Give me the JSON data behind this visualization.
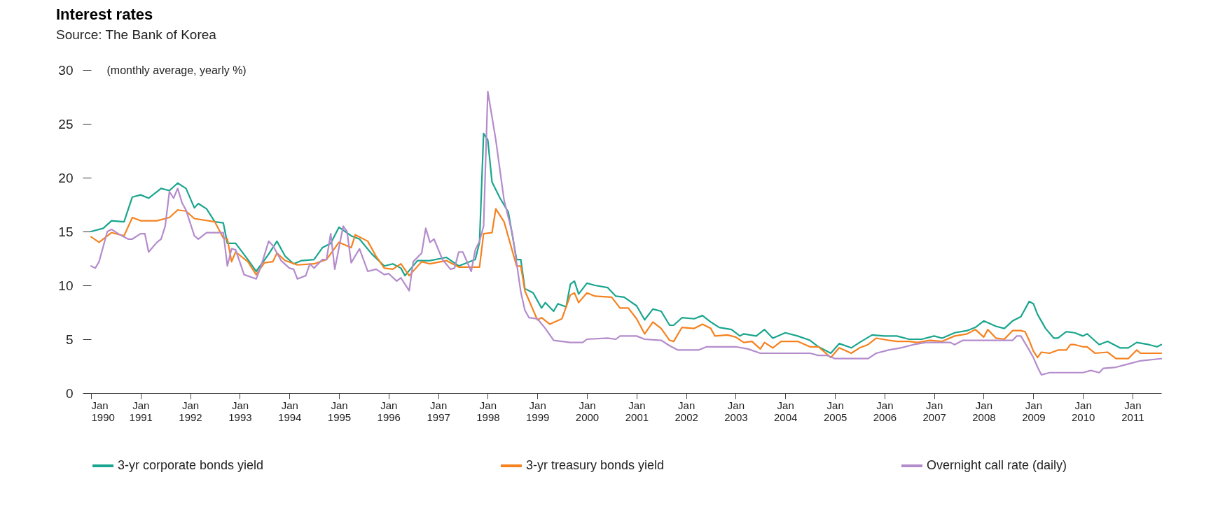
{
  "chart_data": {
    "type": "line",
    "title": "Interest rates",
    "subtitle": "Source: The Bank of Korea",
    "ylabel": "(monthly average, yearly %)",
    "xlim": [
      "1990-01",
      "2011-08"
    ],
    "xticks": [
      {
        "value": "1990-01",
        "label": "Jan\n1990"
      },
      {
        "value": "1991-01",
        "label": "Jan\n1991"
      },
      {
        "value": "1992-01",
        "label": "Jan\n1992"
      },
      {
        "value": "1993-01",
        "label": "Jan\n1993"
      },
      {
        "value": "1994-01",
        "label": "Jan\n1994"
      },
      {
        "value": "1995-01",
        "label": "Jan\n1995"
      },
      {
        "value": "1996-01",
        "label": "Jan\n1996"
      },
      {
        "value": "1997-01",
        "label": "Jan\n1997"
      },
      {
        "value": "1998-01",
        "label": "Jan\n1998"
      },
      {
        "value": "1999-01",
        "label": "Jan\n1999"
      },
      {
        "value": "2000-01",
        "label": "Jan\n2000"
      },
      {
        "value": "2001-01",
        "label": "Jan\n2001"
      },
      {
        "value": "2002-01",
        "label": "Jan\n2002"
      },
      {
        "value": "2003-01",
        "label": "Jan\n2003"
      },
      {
        "value": "2004-01",
        "label": "Jan\n2004"
      },
      {
        "value": "2005-01",
        "label": "Jan\n2005"
      },
      {
        "value": "2006-01",
        "label": "Jan\n2006"
      },
      {
        "value": "2007-01",
        "label": "Jan\n2007"
      },
      {
        "value": "2008-01",
        "label": "Jan\n2008"
      },
      {
        "value": "2009-01",
        "label": "Jan\n2009"
      },
      {
        "value": "2010-01",
        "label": "Jan\n2010"
      },
      {
        "value": "2011-01",
        "label": "Jan\n2011"
      }
    ],
    "ylim": [
      0,
      30
    ],
    "yticks": [
      0,
      5,
      10,
      15,
      20,
      25,
      30
    ],
    "grid": false,
    "legend": "bottom",
    "line_style": "solid",
    "series": [
      {
        "name": "3-yr corporate bonds yield",
        "color": "#1aa58e",
        "x": [
          "1990-01",
          "1990-04",
          "1990-06",
          "1990-09",
          "1990-11",
          "1991-01",
          "1991-03",
          "1991-05",
          "1991-06",
          "1991-08",
          "1991-10",
          "1991-12",
          "1992-02",
          "1992-03",
          "1992-05",
          "1992-07",
          "1992-09",
          "1992-10",
          "1992-12",
          "1993-03",
          "1993-05",
          "1993-08",
          "1993-10",
          "1993-12",
          "1994-02",
          "1994-04",
          "1994-07",
          "1994-09",
          "1994-11",
          "1995-01",
          "1995-04",
          "1995-06",
          "1995-09",
          "1995-12",
          "1996-02",
          "1996-04",
          "1996-05",
          "1996-08",
          "1996-11",
          "1997-03",
          "1997-06",
          "1997-10",
          "1997-11",
          "1997-12",
          "1998-01",
          "1998-02",
          "1998-04",
          "1998-06",
          "1998-08",
          "1998-09",
          "1998-10",
          "1998-12",
          "1999-02",
          "1999-03",
          "1999-05",
          "1999-06",
          "1999-08",
          "1999-09",
          "1999-10",
          "1999-11",
          "2000-01",
          "2000-03",
          "2000-06",
          "2000-08",
          "2000-10",
          "2001-01",
          "2001-03",
          "2001-05",
          "2001-07",
          "2001-09",
          "2001-10",
          "2001-12",
          "2002-03",
          "2002-05",
          "2002-07",
          "2002-09",
          "2002-12",
          "2003-02",
          "2003-03",
          "2003-06",
          "2003-08",
          "2003-10",
          "2004-01",
          "2004-04",
          "2004-07",
          "2004-09",
          "2004-12",
          "2005-02",
          "2005-05",
          "2005-07",
          "2005-10",
          "2006-01",
          "2006-04",
          "2006-07",
          "2006-10",
          "2007-01",
          "2007-03",
          "2007-06",
          "2007-09",
          "2007-11",
          "2008-01",
          "2008-04",
          "2008-06",
          "2008-08",
          "2008-10",
          "2008-12",
          "2009-01",
          "2009-02",
          "2009-04",
          "2009-06",
          "2009-07",
          "2009-09",
          "2009-11",
          "2010-01",
          "2010-02",
          "2010-05",
          "2010-07",
          "2010-10",
          "2010-12",
          "2011-02",
          "2011-05",
          "2011-07",
          "2011-08"
        ],
        "values": [
          15.0,
          15.3,
          16.0,
          15.9,
          18.2,
          18.4,
          18.1,
          18.7,
          19.0,
          18.8,
          19.5,
          19.0,
          17.2,
          17.6,
          17.1,
          15.9,
          15.8,
          13.9,
          13.9,
          12.4,
          11.3,
          12.9,
          14.1,
          12.7,
          12.0,
          12.3,
          12.4,
          13.5,
          13.9,
          15.4,
          14.6,
          14.3,
          12.9,
          11.8,
          12.0,
          11.6,
          10.9,
          12.3,
          12.3,
          12.6,
          11.8,
          12.4,
          14.0,
          24.1,
          23.5,
          19.6,
          18.1,
          16.8,
          12.4,
          12.4,
          9.7,
          9.3,
          7.9,
          8.4,
          7.6,
          8.3,
          8.0,
          10.1,
          10.4,
          9.2,
          10.2,
          10.0,
          9.8,
          9.0,
          8.9,
          8.1,
          6.8,
          7.8,
          7.6,
          6.3,
          6.3,
          7.0,
          6.9,
          7.2,
          6.6,
          6.1,
          5.9,
          5.3,
          5.5,
          5.3,
          5.9,
          5.1,
          5.6,
          5.3,
          4.9,
          4.3,
          3.7,
          4.6,
          4.2,
          4.7,
          5.4,
          5.3,
          5.3,
          5.0,
          5.0,
          5.3,
          5.1,
          5.6,
          5.8,
          6.1,
          6.7,
          6.2,
          6.0,
          6.7,
          7.1,
          8.5,
          8.3,
          7.3,
          6.0,
          5.1,
          5.1,
          5.7,
          5.6,
          5.3,
          5.5,
          4.5,
          4.8,
          4.2,
          4.2,
          4.7,
          4.5,
          4.3,
          4.5
        ]
      },
      {
        "name": "3-yr treasury bonds yield",
        "color": "#f5821f",
        "x": [
          "1990-01",
          "1990-03",
          "1990-06",
          "1990-09",
          "1990-11",
          "1991-01",
          "1991-05",
          "1991-08",
          "1991-10",
          "1991-12",
          "1992-02",
          "1992-07",
          "1992-09",
          "1992-10",
          "1992-11",
          "1992-12",
          "1993-03",
          "1993-05",
          "1993-07",
          "1993-09",
          "1993-10",
          "1993-12",
          "1994-03",
          "1994-07",
          "1994-10",
          "1995-01",
          "1995-04",
          "1995-05",
          "1995-08",
          "1995-10",
          "1995-12",
          "1996-02",
          "1996-04",
          "1996-06",
          "1996-09",
          "1996-11",
          "1997-03",
          "1997-06",
          "1997-11",
          "1997-12",
          "1998-02",
          "1998-03",
          "1998-05",
          "1998-08",
          "1998-09",
          "1998-10",
          "1999-01",
          "1999-02",
          "1999-04",
          "1999-07",
          "1999-09",
          "1999-10",
          "1999-11",
          "2000-01",
          "2000-03",
          "2000-07",
          "2000-09",
          "2000-11",
          "2001-01",
          "2001-03",
          "2001-05",
          "2001-07",
          "2001-09",
          "2001-10",
          "2001-12",
          "2002-03",
          "2002-05",
          "2002-07",
          "2002-08",
          "2002-11",
          "2003-01",
          "2003-03",
          "2003-05",
          "2003-07",
          "2003-08",
          "2003-10",
          "2003-12",
          "2004-04",
          "2004-07",
          "2004-09",
          "2004-12",
          "2005-02",
          "2005-05",
          "2005-07",
          "2005-09",
          "2005-11",
          "2006-02",
          "2006-04",
          "2006-07",
          "2006-09",
          "2006-12",
          "2007-03",
          "2007-06",
          "2007-09",
          "2007-11",
          "2008-01",
          "2008-02",
          "2008-04",
          "2008-06",
          "2008-08",
          "2008-10",
          "2008-11",
          "2008-12",
          "2009-01",
          "2009-02",
          "2009-03",
          "2009-05",
          "2009-07",
          "2009-09",
          "2009-10",
          "2009-11",
          "2010-01",
          "2010-02",
          "2010-04",
          "2010-07",
          "2010-09",
          "2010-12",
          "2011-02",
          "2011-03",
          "2011-08"
        ],
        "values": [
          14.5,
          14.0,
          14.9,
          14.6,
          16.3,
          16.0,
          16.0,
          16.3,
          17.0,
          16.9,
          16.2,
          15.9,
          14.4,
          14.3,
          12.2,
          13.1,
          12.2,
          11.0,
          12.1,
          12.2,
          13.0,
          12.3,
          11.9,
          12.0,
          12.4,
          14.0,
          13.5,
          14.7,
          14.1,
          12.7,
          11.6,
          11.5,
          12.0,
          10.9,
          12.2,
          12.0,
          12.3,
          11.7,
          11.7,
          14.8,
          14.9,
          17.1,
          15.9,
          11.8,
          11.8,
          9.5,
          6.8,
          7.0,
          6.4,
          6.9,
          9.1,
          9.3,
          8.4,
          9.3,
          9.0,
          8.9,
          7.9,
          7.9,
          6.9,
          5.5,
          6.6,
          6.0,
          4.9,
          4.8,
          6.1,
          6.0,
          6.4,
          6.0,
          5.3,
          5.4,
          5.2,
          4.7,
          4.8,
          4.1,
          4.7,
          4.2,
          4.8,
          4.8,
          4.3,
          4.3,
          3.3,
          4.2,
          3.7,
          4.2,
          4.5,
          5.1,
          4.9,
          4.8,
          4.8,
          4.7,
          4.9,
          4.8,
          5.3,
          5.5,
          5.9,
          5.2,
          5.9,
          5.1,
          5.0,
          5.8,
          5.8,
          5.7,
          4.9,
          3.9,
          3.3,
          3.8,
          3.7,
          4.0,
          4.0,
          4.5,
          4.5,
          4.3,
          4.3,
          3.7,
          3.8,
          3.2,
          3.2,
          4.0,
          3.7,
          3.7
        ]
      },
      {
        "name": "Overnight call rate (daily)",
        "color": "#b48ccc",
        "x": [
          "1990-01",
          "1990-02",
          "1990-03",
          "1990-05",
          "1990-06",
          "1990-08",
          "1990-10",
          "1990-11",
          "1991-01",
          "1991-02",
          "1991-03",
          "1991-05",
          "1991-06",
          "1991-07",
          "1991-08",
          "1991-09",
          "1991-10",
          "1991-11",
          "1991-12",
          "1992-02",
          "1992-03",
          "1992-05",
          "1992-09",
          "1992-10",
          "1992-11",
          "1992-12",
          "1993-02",
          "1993-05",
          "1993-06",
          "1993-08",
          "1993-09",
          "1993-11",
          "1994-01",
          "1994-02",
          "1994-03",
          "1994-05",
          "1994-06",
          "1994-07",
          "1994-09",
          "1994-10",
          "1994-11",
          "1994-12",
          "1995-02",
          "1995-03",
          "1995-04",
          "1995-06",
          "1995-08",
          "1995-10",
          "1995-12",
          "1996-01",
          "1996-03",
          "1996-04",
          "1996-06",
          "1996-07",
          "1996-09",
          "1996-10",
          "1996-11",
          "1996-12",
          "1997-02",
          "1997-04",
          "1997-05",
          "1997-06",
          "1997-07",
          "1997-09",
          "1997-10",
          "1997-11",
          "1997-12",
          "1998-01",
          "1998-03",
          "1998-05",
          "1998-07",
          "1998-09",
          "1998-10",
          "1998-11",
          "1999-01",
          "1999-03",
          "1999-05",
          "1999-09",
          "1999-12",
          "2000-01",
          "2000-06",
          "2000-08",
          "2000-09",
          "2001-01",
          "2001-03",
          "2001-07",
          "2001-09",
          "2001-11",
          "2002-04",
          "2002-06",
          "2003-01",
          "2003-04",
          "2003-07",
          "2004-07",
          "2004-09",
          "2004-11",
          "2005-01",
          "2005-09",
          "2005-11",
          "2006-02",
          "2006-05",
          "2006-08",
          "2006-11",
          "2007-02",
          "2007-05",
          "2007-06",
          "2007-08",
          "2008-08",
          "2008-09",
          "2008-10",
          "2008-12",
          "2009-01",
          "2009-02",
          "2009-03",
          "2009-05",
          "2010-01",
          "2010-03",
          "2010-05",
          "2010-06",
          "2010-09",
          "2010-12",
          "2011-03",
          "2011-08"
        ],
        "values": [
          11.8,
          11.6,
          12.2,
          15.0,
          15.2,
          14.7,
          14.3,
          14.3,
          14.8,
          14.8,
          13.1,
          14.0,
          14.3,
          15.5,
          18.7,
          18.1,
          19.0,
          17.7,
          17.0,
          14.6,
          14.3,
          14.9,
          14.9,
          11.8,
          13.4,
          13.3,
          11.0,
          10.6,
          11.6,
          14.1,
          13.7,
          12.3,
          11.6,
          11.5,
          10.6,
          10.9,
          12.0,
          11.6,
          12.4,
          12.4,
          14.8,
          11.5,
          15.5,
          15.0,
          12.1,
          13.4,
          11.3,
          11.5,
          11.0,
          11.1,
          10.4,
          10.7,
          9.5,
          12.2,
          13.0,
          15.3,
          14.0,
          14.3,
          12.4,
          11.5,
          11.6,
          13.1,
          13.1,
          11.3,
          13.3,
          14.1,
          15.5,
          28.0,
          23.5,
          17.9,
          14.8,
          9.4,
          7.7,
          7.0,
          6.9,
          6.0,
          4.9,
          4.7,
          4.7,
          5.0,
          5.1,
          5.0,
          5.3,
          5.3,
          5.0,
          4.9,
          4.4,
          4.0,
          4.0,
          4.3,
          4.3,
          4.1,
          3.7,
          3.7,
          3.5,
          3.5,
          3.2,
          3.2,
          3.7,
          4.0,
          4.2,
          4.5,
          4.7,
          4.7,
          4.7,
          4.5,
          4.9,
          4.9,
          5.3,
          5.3,
          4.0,
          3.3,
          2.4,
          1.7,
          1.9,
          1.9,
          2.1,
          1.9,
          2.3,
          2.4,
          2.7,
          3.0,
          3.2
        ]
      }
    ]
  }
}
